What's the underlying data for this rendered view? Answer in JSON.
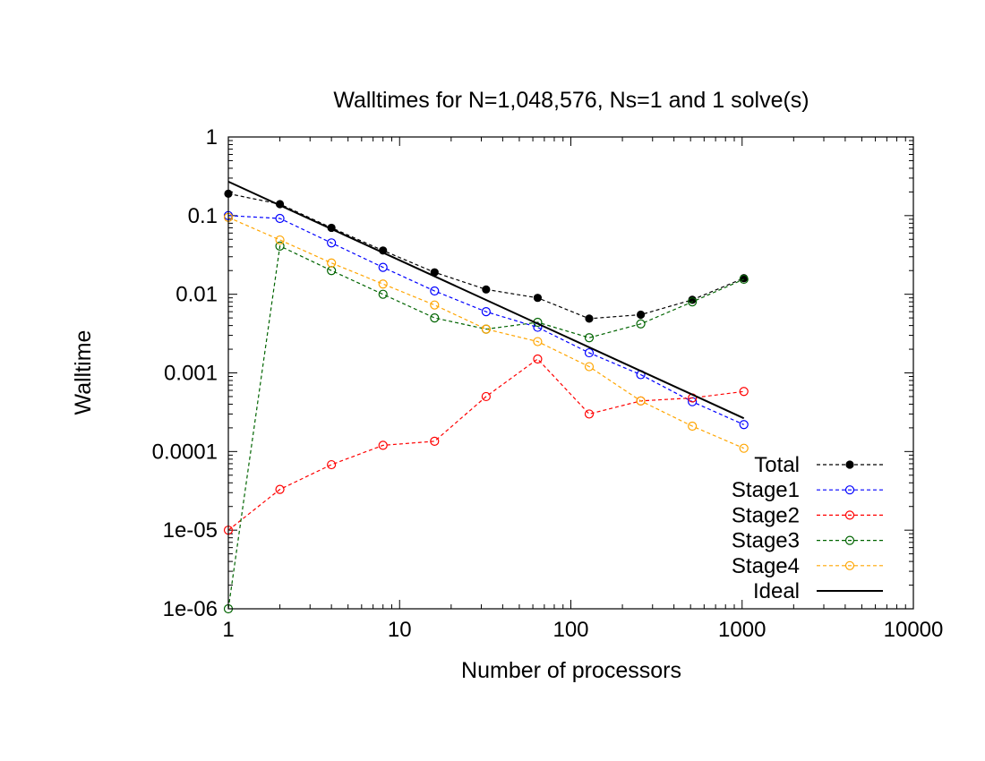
{
  "chart_data": {
    "type": "line",
    "title": "Walltimes for N=1,048,576, Ns=1 and 1 solve(s)",
    "xlabel": "Number of processors",
    "ylabel": "Walltime",
    "xscale": "log",
    "yscale": "log",
    "xlim": [
      1,
      10000
    ],
    "ylim": [
      1e-06,
      1
    ],
    "xticks": [
      1,
      10,
      100,
      1000,
      10000
    ],
    "xtick_labels": [
      "1",
      "10",
      "100",
      "1000",
      "10000"
    ],
    "yticks": [
      1e-06,
      1e-05,
      0.0001,
      0.001,
      0.01,
      0.1,
      1
    ],
    "ytick_labels": [
      "1e-06",
      "1e-05",
      "0.0001",
      "0.001",
      "0.01",
      "0.1",
      "1"
    ],
    "grid": false,
    "legend_position": "bottom-right",
    "series": [
      {
        "name": "Total",
        "color": "#000000",
        "line": "dashed",
        "marker": "filled-circle",
        "x": [
          1,
          2,
          4,
          8,
          16,
          32,
          64,
          128,
          256,
          512,
          1024
        ],
        "y": [
          0.19,
          0.14,
          0.07,
          0.036,
          0.019,
          0.0115,
          0.009,
          0.0049,
          0.0055,
          0.0085,
          0.016
        ]
      },
      {
        "name": "Stage1",
        "color": "#0000ff",
        "line": "dashed",
        "marker": "open-circle",
        "x": [
          1,
          2,
          4,
          8,
          16,
          32,
          64,
          128,
          256,
          512,
          1024
        ],
        "y": [
          0.1,
          0.092,
          0.045,
          0.022,
          0.011,
          0.006,
          0.0038,
          0.0018,
          0.00095,
          0.00043,
          0.00022
        ]
      },
      {
        "name": "Stage2",
        "color": "#ff0000",
        "line": "dashed",
        "marker": "open-circle",
        "x": [
          1,
          2,
          4,
          8,
          16,
          32,
          64,
          128,
          256,
          512,
          1024
        ],
        "y": [
          1e-05,
          3.3e-05,
          6.8e-05,
          0.00012,
          0.000135,
          0.0005,
          0.0015,
          0.0003,
          0.00044,
          0.00048,
          0.00058
        ]
      },
      {
        "name": "Stage3",
        "color": "#006400",
        "line": "dashed",
        "marker": "open-circle",
        "x": [
          1,
          2,
          4,
          8,
          16,
          32,
          64,
          128,
          256,
          512,
          1024
        ],
        "y": [
          1e-06,
          0.041,
          0.02,
          0.01,
          0.005,
          0.0036,
          0.0044,
          0.0028,
          0.0042,
          0.008,
          0.0155
        ]
      },
      {
        "name": "Stage4",
        "color": "#ffa500",
        "line": "dashed",
        "marker": "open-circle",
        "x": [
          1,
          2,
          4,
          8,
          16,
          32,
          64,
          128,
          256,
          512,
          1024
        ],
        "y": [
          0.095,
          0.049,
          0.025,
          0.0135,
          0.0073,
          0.0036,
          0.0025,
          0.0012,
          0.00044,
          0.00021,
          0.00011
        ]
      },
      {
        "name": "Ideal",
        "color": "#000000",
        "line": "solid",
        "marker": "none",
        "x": [
          1,
          1024
        ],
        "y": [
          0.27,
          0.000265
        ]
      }
    ]
  }
}
